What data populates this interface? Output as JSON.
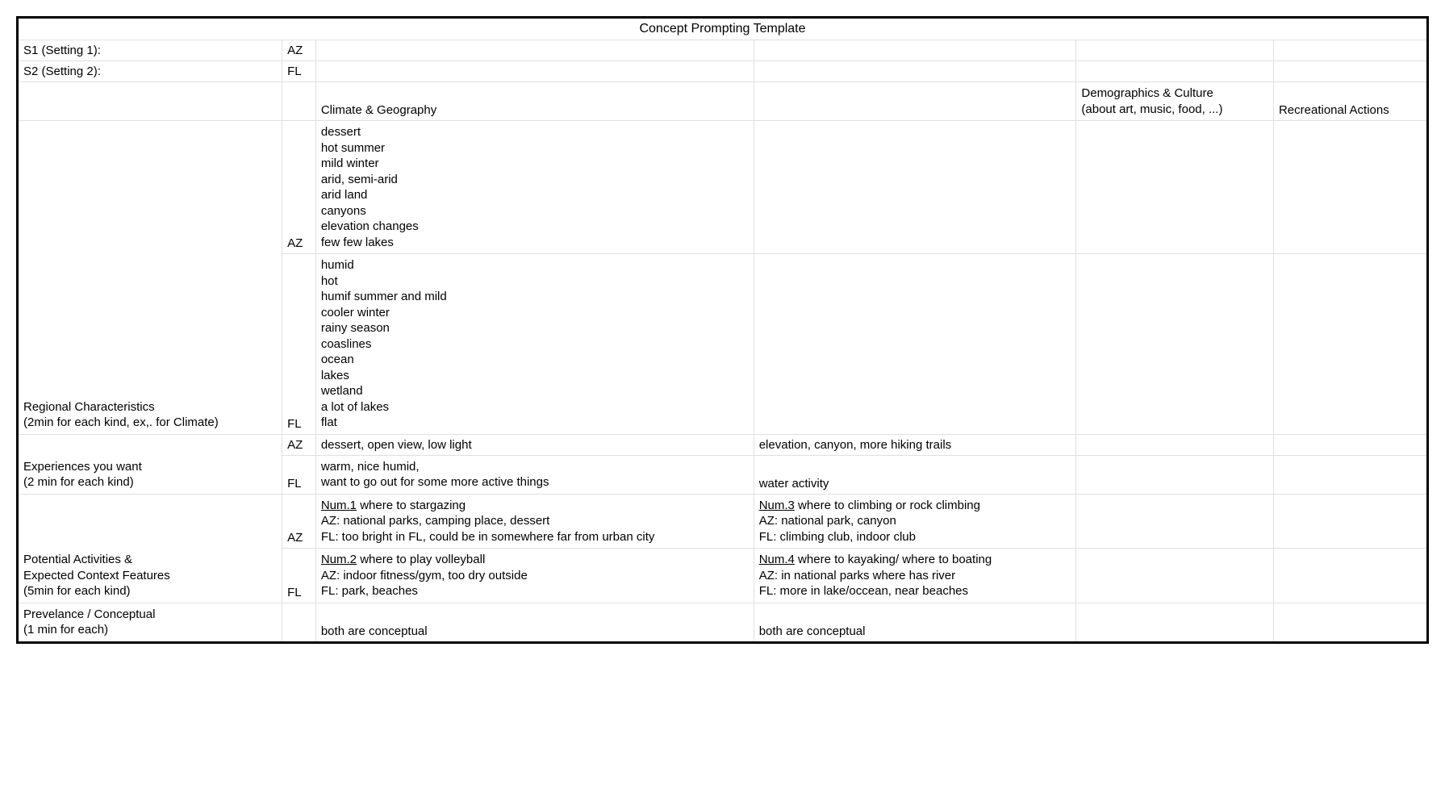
{
  "title": "Concept Prompting Template",
  "settings": {
    "s1": {
      "label": "S1 (Setting 1):",
      "value": "AZ"
    },
    "s2": {
      "label": "S2 (Setting 2):",
      "value": "FL"
    }
  },
  "headers": {
    "climate": "Climate & Geography",
    "demo": "Demographics & Culture\n(about art, music, food, ...)",
    "rec": "Recreational Actions"
  },
  "rows": {
    "regional": {
      "label": "Regional Characteristics\n(2min for each kind, ex,. for Climate)",
      "az_code": "AZ",
      "az_climate": "dessert\nhot summer\nmild winter\narid, semi-arid\narid land\ncanyons\nelevation changes\nfew few lakes",
      "fl_code": "FL",
      "fl_climate": "humid\nhot\nhumif summer and mild\ncooler winter\nrainy season\ncoaslines\nocean\nlakes\nwetland\na lot of lakes\nflat"
    },
    "experiences": {
      "label": "Experiences you want\n(2 min for each kind)",
      "az_code": "AZ",
      "az_c1": "dessert, open view, low light",
      "az_c2": "elevation, canyon, more hiking trails",
      "fl_code": "FL",
      "fl_c1": "warm, nice humid,\nwant to go out for some more active things",
      "fl_c2": "water activity"
    },
    "activities": {
      "label": "Potential Activities &\nExpected Context Features\n(5min for each kind)",
      "az_code": "AZ",
      "num1_u": "Num.1",
      "num1_rest": " where to stargazing\nAZ: national parks, camping place, dessert\nFL: too bright in FL, could be in somewhere far from urban city",
      "num3_u": "Num.3",
      "num3_rest": " where to climbing or rock climbing\nAZ: national park, canyon\nFL: climbing club, indoor club",
      "fl_code": "FL",
      "num2_u": "Num.2",
      "num2_rest": " where to play volleyball\nAZ: indoor fitness/gym, too dry outside\nFL: park, beaches",
      "num4_u": "Num.4",
      "num4_rest": " where to kayaking/ where to boating\nAZ: in national parks where has river\nFL: more in lake/occean, near beaches"
    },
    "prevalence": {
      "label": "Prevelance / Conceptual\n(1 min for each)",
      "c1": "both are conceptual",
      "c2": "both are conceptual"
    }
  }
}
